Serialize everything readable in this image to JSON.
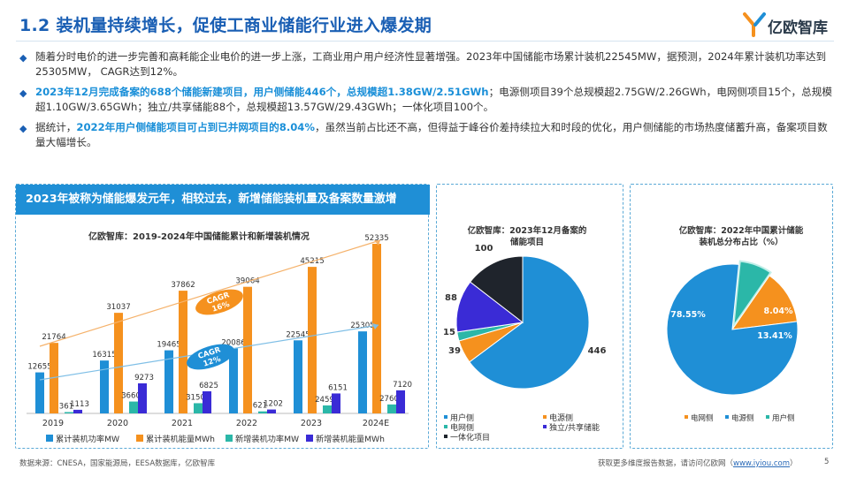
{
  "header": {
    "title": "1.2 装机量持续增长，促使工商业储能行业进入爆发期",
    "logo_text": "亿欧智库"
  },
  "bullets": [
    {
      "segments": [
        {
          "text": "随着分时电价的进一步完善和高耗能企业电价的进一步上涨，工商业用户用户经济性显著增强。2023年中国储能市场累计装机22545MW，据预测，2024年累计装机功率达到25305MW， CAGR达到12%。",
          "hl": false
        }
      ]
    },
    {
      "segments": [
        {
          "text": "2023年12月完成备案的688个储能新建项目，用户侧储能446个，总规模超1.38GW/2.51GWh",
          "hl": true
        },
        {
          "text": "；电源侧项目39个总规模超2.75GW/2.26GWh，电网侧项目15个，总规模超1.10GW/3.65GWh；独立/共享储能88个，总规模超13.57GW/29.43GWh；一体化项目100个。",
          "hl": false
        }
      ]
    },
    {
      "segments": [
        {
          "text": "据统计，",
          "hl": false
        },
        {
          "text": "2022年用户侧储能项目可占到已并网项目的8.04%",
          "hl": true
        },
        {
          "text": "，虽然当前占比还不高，但得益于峰谷价差持续拉大和时段的优化，用户侧储能的市场热度储蓄升高，备案项目数量大幅增长。",
          "hl": false
        }
      ]
    }
  ],
  "panel_header": "2023年被称为储能爆发元年，相较过去，新增储能装机量及备案数量激增",
  "colors": {
    "blue": "#1f8fd6",
    "orange": "#f5911e",
    "teal": "#2bb7a8",
    "purple": "#3a2bd6",
    "dark": "#1f242c",
    "title": "#1a5fb4"
  },
  "chart_data": [
    {
      "type": "bar",
      "title": "亿欧智库：2019-2024年中国储能累计和新增装机情况",
      "categories": [
        "2019",
        "2020",
        "2021",
        "2022",
        "2023",
        "2024E"
      ],
      "series": [
        {
          "name": "累计装机功率MW",
          "values": [
            12655,
            16315,
            19465,
            20086,
            22545,
            25305
          ]
        },
        {
          "name": "累计装机能量MWh",
          "values": [
            21764,
            31037,
            37862,
            39064,
            45215,
            52335
          ]
        },
        {
          "name": "新增装机功率MW",
          "values": [
            361,
            3660,
            3150,
            621,
            2459,
            2760
          ]
        },
        {
          "name": "新增装机能量MWh",
          "values": [
            1113,
            9273,
            6825,
            1202,
            6151,
            7120
          ]
        }
      ],
      "annotations": [
        {
          "text": "CAGR\n16%"
        },
        {
          "text": "CAGR\n12%"
        }
      ],
      "legend": "bottom"
    },
    {
      "type": "pie",
      "title": "亿欧智库：2023年12月备案的储能项目",
      "labels": [
        "用户侧",
        "电源侧",
        "电网侧",
        "独立/共享储能",
        "一体化项目"
      ],
      "values": [
        446,
        39,
        15,
        88,
        100
      ],
      "legend": "bottom"
    },
    {
      "type": "pie",
      "title": "亿欧智库：2022年中国累计储能装机总分布占比（%）",
      "labels": [
        "电网侧",
        "电源侧",
        "用户侧"
      ],
      "values": [
        13.41,
        78.55,
        8.04
      ],
      "value_labels": [
        "13.41%",
        "78.55%",
        "8.04%"
      ],
      "legend": "bottom"
    }
  ],
  "footer": {
    "source": "数据来源：CNESA，国家能源局，EESA数据库，亿欧智库",
    "right_text": "获取更多维度报告数据，请访问亿欧网（",
    "url": "www.iyiou.com",
    "right_close": "）",
    "page": "5"
  }
}
